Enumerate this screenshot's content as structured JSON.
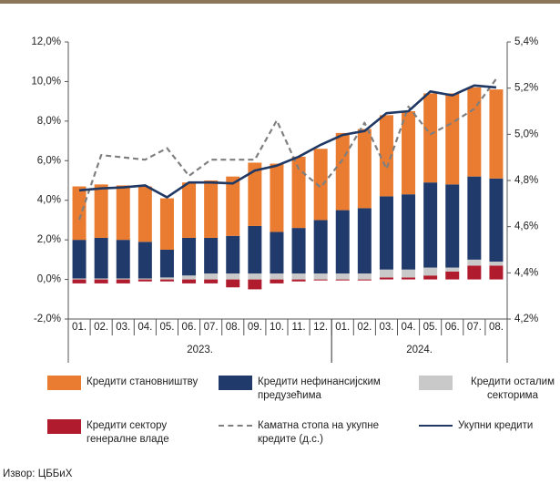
{
  "chart_data": {
    "type": "bar",
    "categories": [
      "01.",
      "02.",
      "03.",
      "04.",
      "05.",
      "06.",
      "07.",
      "08.",
      "09.",
      "10.",
      "11.",
      "12.",
      "01.",
      "02.",
      "03.",
      "04.",
      "05.",
      "06.",
      "07.",
      "08."
    ],
    "groups": [
      {
        "label": "2023.",
        "count": 12
      },
      {
        "label": "2024.",
        "count": 8
      }
    ],
    "series": [
      {
        "name": "Кредити становништву",
        "type": "bar",
        "color": "#e97c30",
        "values": [
          2.7,
          2.7,
          2.75,
          2.8,
          2.6,
          2.8,
          2.9,
          3.0,
          3.2,
          3.45,
          3.6,
          3.6,
          3.9,
          4.0,
          4.1,
          4.2,
          4.5,
          4.6,
          4.5,
          4.5
        ]
      },
      {
        "name": "Кредити нефинансијским предузећима",
        "type": "bar",
        "color": "#1f3a6b",
        "values": [
          1.95,
          2.05,
          1.95,
          1.85,
          1.4,
          1.9,
          1.8,
          1.9,
          2.4,
          2.1,
          2.3,
          2.7,
          3.2,
          3.3,
          3.7,
          3.8,
          4.3,
          4.2,
          4.2,
          4.2
        ]
      },
      {
        "name": "Кредити осталим секторима",
        "type": "bar",
        "color": "#c9c9c9",
        "values": [
          0.05,
          0.05,
          0.05,
          0.05,
          0.1,
          0.2,
          0.3,
          0.3,
          0.3,
          0.3,
          0.3,
          0.3,
          0.3,
          0.3,
          0.4,
          0.4,
          0.4,
          0.2,
          0.3,
          0.2
        ]
      },
      {
        "name": "Кредити сектору генералне владе",
        "type": "bar",
        "color": "#b01c2e",
        "values": [
          -0.2,
          -0.2,
          -0.2,
          -0.1,
          -0.1,
          -0.2,
          -0.2,
          -0.4,
          -0.5,
          -0.2,
          -0.1,
          -0.05,
          -0.05,
          -0.05,
          0.1,
          0.1,
          0.2,
          0.4,
          0.7,
          0.7
        ]
      },
      {
        "name": "Каматна стопа на укупне кредите (д.с.)",
        "type": "line",
        "axis": "y2",
        "dashed": true,
        "color": "#7f7f7f",
        "values": [
          4.63,
          4.91,
          4.9,
          4.89,
          4.94,
          4.82,
          4.89,
          4.89,
          4.89,
          5.06,
          4.85,
          4.77,
          4.89,
          5.05,
          4.85,
          5.12,
          5.0,
          5.05,
          5.11,
          5.24
        ]
      },
      {
        "name": "Укупни кредити",
        "type": "line",
        "color": "#1f3864",
        "values": [
          4.5,
          4.6,
          4.65,
          4.75,
          4.15,
          4.9,
          4.9,
          4.85,
          5.5,
          5.75,
          6.2,
          6.8,
          7.3,
          7.5,
          8.4,
          8.5,
          9.5,
          9.3,
          9.8,
          9.7
        ]
      }
    ],
    "ylim": [
      -2,
      12
    ],
    "yticks": [
      {
        "value": -2,
        "label": "-2,0%"
      },
      {
        "value": 0,
        "label": "0,0%"
      },
      {
        "value": 2,
        "label": "2,0%"
      },
      {
        "value": 4,
        "label": "4,0%"
      },
      {
        "value": 6,
        "label": "6,0%"
      },
      {
        "value": 8,
        "label": "8,0%"
      },
      {
        "value": 10,
        "label": "10,0%"
      },
      {
        "value": 12,
        "label": "12,0%"
      }
    ],
    "y2lim": [
      4.2,
      5.4
    ],
    "y2ticks": [
      {
        "value": 4.2,
        "label": "4,2%"
      },
      {
        "value": 4.4,
        "label": "4,4%"
      },
      {
        "value": 4.6,
        "label": "4,6%"
      },
      {
        "value": 4.8,
        "label": "4,8%"
      },
      {
        "value": 5.0,
        "label": "5,0%"
      },
      {
        "value": 5.2,
        "label": "5,2%"
      },
      {
        "value": 5.4,
        "label": "5,4%"
      }
    ],
    "source": "Извор: ЦББиХ"
  }
}
